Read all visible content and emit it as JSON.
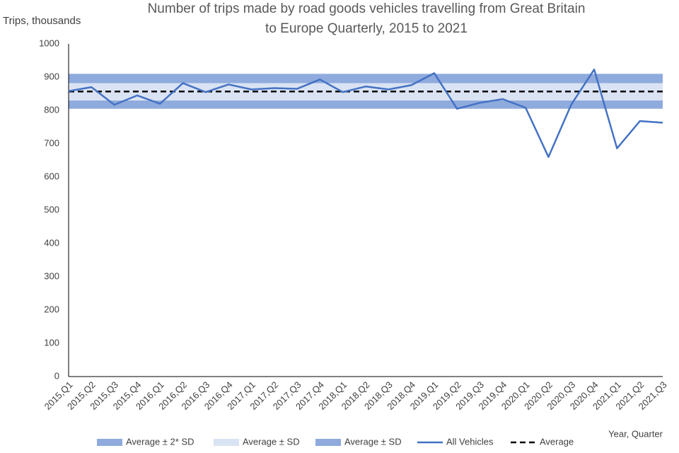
{
  "chart_data": {
    "type": "line",
    "title": [
      "Number of trips made by road goods vehicles travelling from Great Britain",
      "to Europe Quarterly, 2015 to 2021"
    ],
    "y_label": "Trips, thousands",
    "x_label": "Year, Quarter",
    "categories": [
      "2015,Q1",
      "2015,Q2",
      "2015,Q3",
      "2015,Q4",
      "2016,Q1",
      "2016,Q2",
      "2016,Q3",
      "2016,Q4",
      "2017,Q1",
      "2017,Q2",
      "2017,Q3",
      "2017,Q4",
      "2018,Q1",
      "2018,Q2",
      "2018,Q3",
      "2018,Q4",
      "2019,Q1",
      "2019,Q2",
      "2019,Q3",
      "2019,Q4",
      "2020,Q1",
      "2020,Q2",
      "2020,Q3",
      "2020,Q4",
      "2021,Q1",
      "2021,Q2",
      "2021,Q3"
    ],
    "bands": [
      {
        "name": "Average ± 2* SD",
        "color": "#8faadc",
        "from": 805,
        "to": 830
      },
      {
        "name": "Average ± SD",
        "color": "#dae3f3",
        "from": 830,
        "to": 882
      },
      {
        "name": "Average ± SD",
        "color": "#8faadc",
        "from": 882,
        "to": 910
      }
    ],
    "series": [
      {
        "name": "All Vehicles",
        "color": "#4472c4",
        "values": [
          858,
          870,
          817,
          845,
          820,
          882,
          855,
          878,
          863,
          867,
          865,
          893,
          855,
          872,
          863,
          876,
          912,
          805,
          823,
          834,
          808,
          660,
          818,
          923,
          686,
          768,
          763
        ]
      }
    ],
    "average": {
      "name": "Average",
      "color": "#000000",
      "value": 857
    },
    "ylim": [
      0,
      1000
    ],
    "yticks": [
      0,
      100,
      200,
      300,
      400,
      500,
      600,
      700,
      800,
      900,
      1000
    ],
    "grid": false
  }
}
